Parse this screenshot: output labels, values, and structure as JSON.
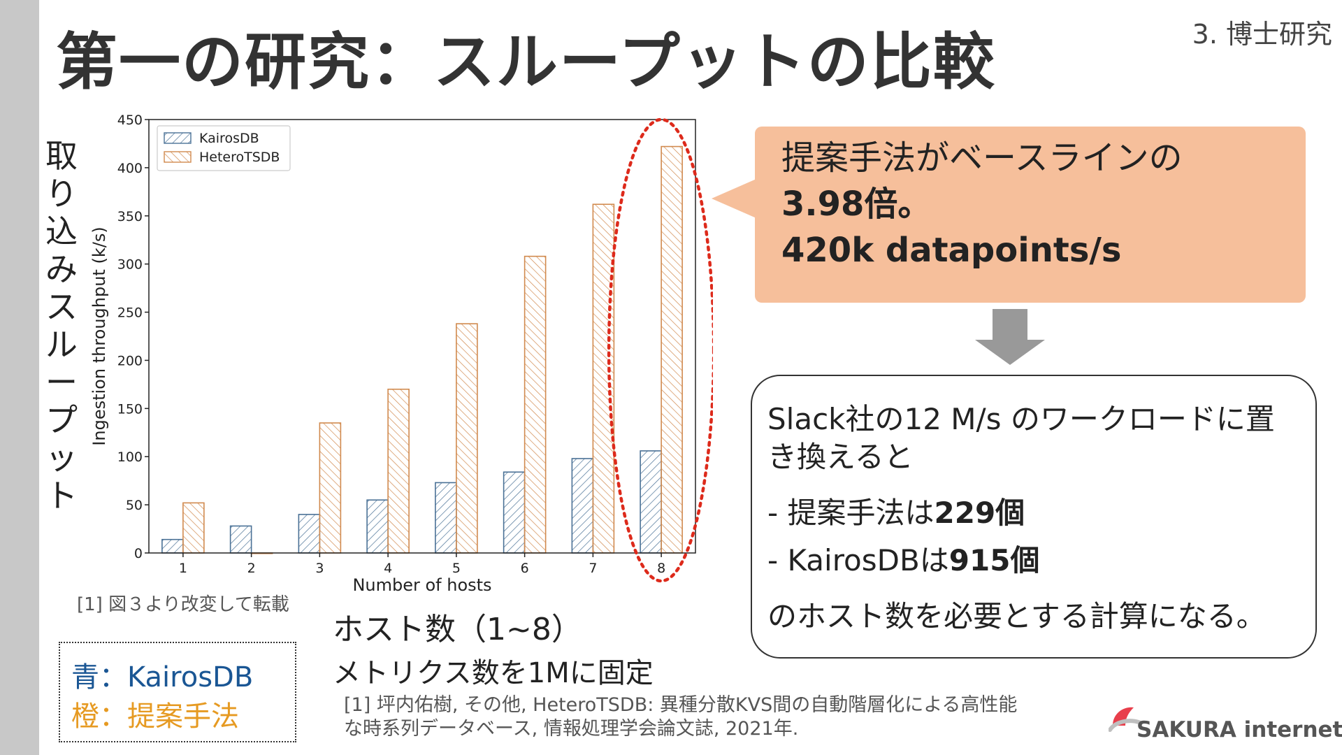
{
  "slide": {
    "title": "第一の研究：スループットの比較",
    "section": "3. 博士研究",
    "ylabel_vertical": [
      "取",
      "り",
      "込",
      "み",
      "ス",
      "ル",
      "ー",
      "プ",
      "ッ",
      "ト"
    ],
    "source_note": "[1] 図３より改変して転載",
    "callout": {
      "line1": "提案手法がベースラインの",
      "line2": "3.98倍。",
      "line3": "420k datapoints/s"
    },
    "info": {
      "line1": "Slack社の12 M/s のワークロードに置",
      "line2": "き換えると",
      "item1_prefix": "-  提案手法は",
      "item1_value": "229個",
      "item2_prefix": "-  KairosDBは",
      "item2_value": "915個",
      "line5": "のホスト数を必要とする計算になる。"
    },
    "hosts_label": "ホスト数（1~8）",
    "metrics_label": "メトリクス数を1Mに固定",
    "legend_box": {
      "blue": "青：KairosDB",
      "orange": "橙：提案手法"
    },
    "citation": {
      "line1": "[1] 坪内佑樹, その他, HeteroTSDB: 異種分散KVS間の自動階層化による高性能",
      "line2": "な時系列データベース, 情報処理学会論文誌, 2021年."
    },
    "logo_text": "SAKURA internet"
  },
  "colors": {
    "kairos": "#4a7196",
    "hetero": "#d18a4e",
    "callout_bg": "#f6bf9b",
    "highlight": "#dd2a1b",
    "arrow": "#999999"
  },
  "chart_data": {
    "type": "bar",
    "categories": [
      "1",
      "2",
      "3",
      "4",
      "5",
      "6",
      "7",
      "8"
    ],
    "series": [
      {
        "name": "KairosDB",
        "values": [
          14,
          28,
          40,
          55,
          73,
          84,
          98,
          106
        ]
      },
      {
        "name": "HeteroTSDB",
        "values": [
          52,
          0,
          135,
          170,
          238,
          308,
          362,
          422
        ]
      }
    ],
    "xlabel": "Number of hosts",
    "ylabel": "Ingestion throughput (k/s)",
    "ylim": [
      0,
      450
    ],
    "yticks": [
      0,
      50,
      100,
      150,
      200,
      250,
      300,
      350,
      400,
      450
    ],
    "legend": "top-left",
    "grid": false,
    "highlight_category": "8"
  }
}
